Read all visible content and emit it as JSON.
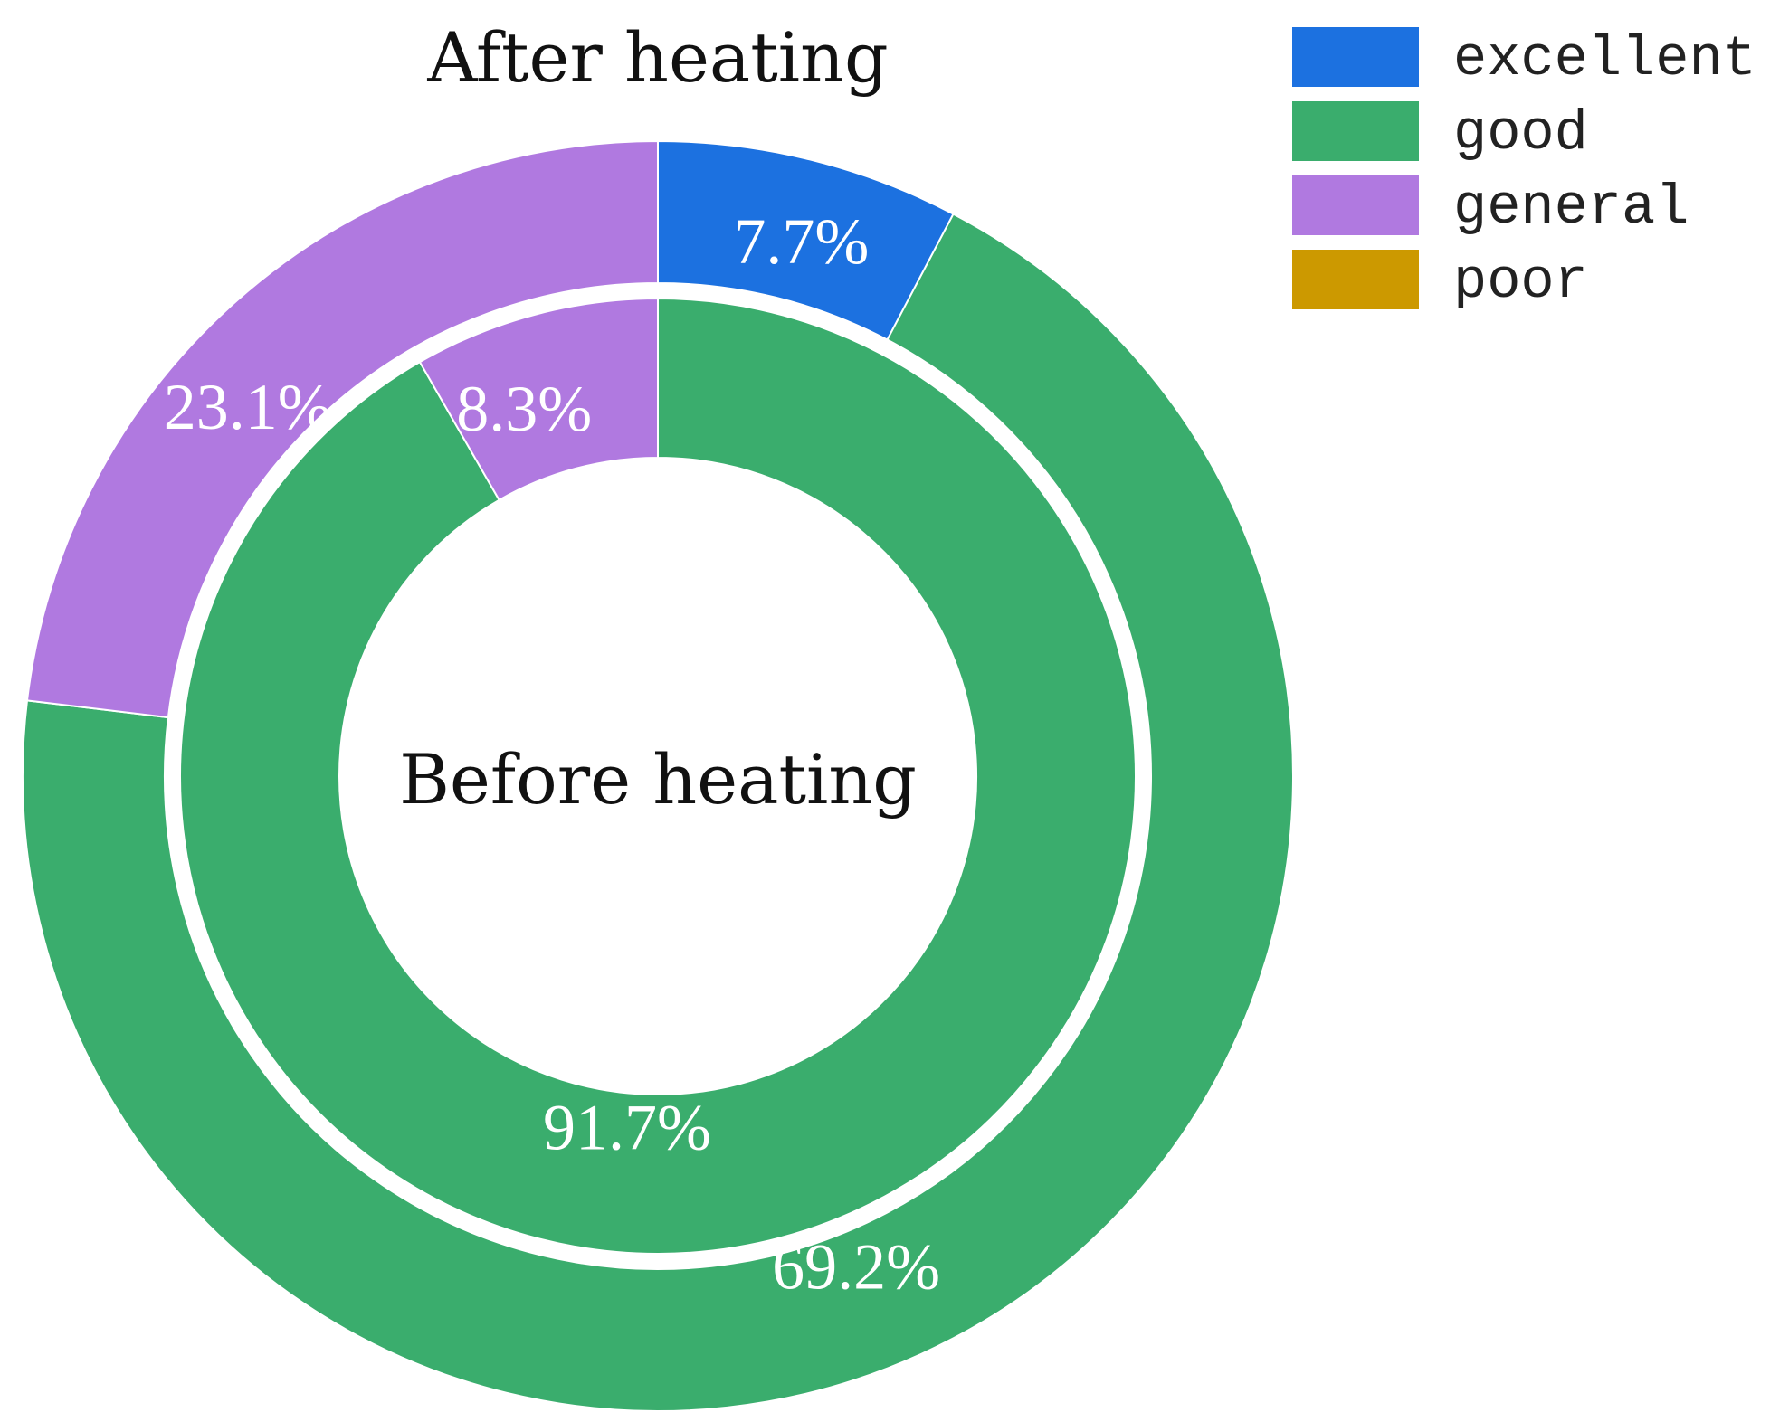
{
  "chart_data": {
    "type": "pie",
    "rings": [
      {
        "name": "Before heating",
        "slices": [
          {
            "category": "excellent",
            "value": 0
          },
          {
            "category": "good",
            "value": 91.7,
            "label": "91.7%"
          },
          {
            "category": "general",
            "value": 8.3,
            "label": "8.3%"
          },
          {
            "category": "poor",
            "value": 0
          }
        ]
      },
      {
        "name": "After heating",
        "slices": [
          {
            "category": "excellent",
            "value": 7.7,
            "label": "7.7%"
          },
          {
            "category": "good",
            "value": 69.2,
            "label": "69.2%"
          },
          {
            "category": "general",
            "value": 23.1,
            "label": "23.1%"
          },
          {
            "category": "poor",
            "value": 0
          }
        ]
      }
    ],
    "legend": {
      "placement": "top-right",
      "items": [
        {
          "name": "excellent",
          "color": "#1c71e0"
        },
        {
          "name": "good",
          "color": "#3aad6d"
        },
        {
          "name": "general",
          "color": "#b079e0"
        },
        {
          "name": "poor",
          "color": "#cc9900"
        }
      ]
    }
  }
}
